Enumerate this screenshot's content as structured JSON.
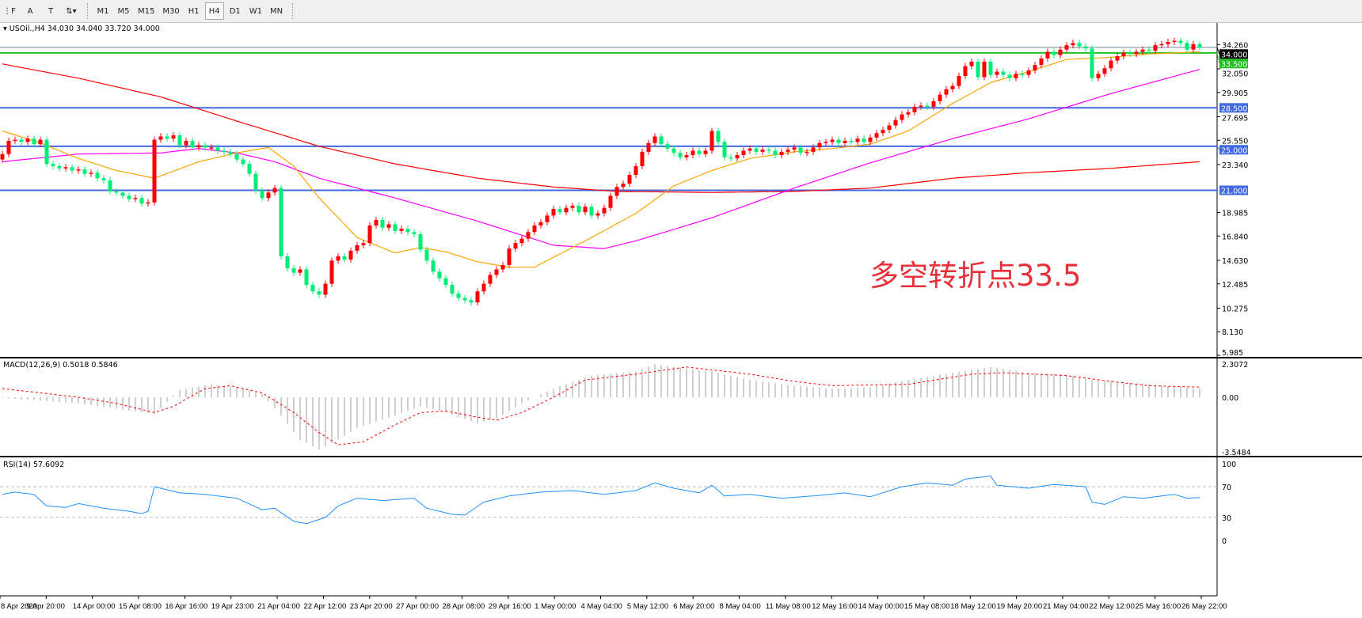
{
  "toolbar": {
    "tools": [
      {
        "name": "fibo-tool-icon",
        "glyph": "⋮F"
      },
      {
        "name": "text-tool-icon",
        "glyph": "A"
      },
      {
        "name": "text-label-tool-icon",
        "glyph": "T"
      },
      {
        "name": "arrows-tool-icon",
        "glyph": "⇅▾"
      }
    ],
    "timeframes": [
      "M1",
      "M5",
      "M15",
      "M30",
      "H1",
      "H4",
      "D1",
      "W1",
      "MN"
    ],
    "active_timeframe": "H4"
  },
  "chart_data": {
    "type": "candlestick",
    "symbol_header": "USOil.,H4  34.030 34.040 33.720 34.000",
    "colors": {
      "up": "#ff0000",
      "down": "#00ee76",
      "ma_fast": "#ffa500",
      "ma_mid": "#ff00ff",
      "ma_slow": "#ff0000",
      "level": "#4169e1",
      "pivot": "#22c022",
      "price_line": "#778899",
      "macd_hist": "#c0c0c0",
      "macd_signal": "#ff0000",
      "rsi": "#1e90ff"
    },
    "ylim": [
      5.985,
      34.26
    ],
    "closes": [
      24.3,
      25.5,
      25.6,
      25.4,
      25.7,
      25.2,
      25.6,
      23.4,
      23.2,
      23.0,
      23.1,
      22.8,
      22.9,
      22.5,
      22.6,
      22.1,
      21.9,
      20.9,
      20.8,
      20.5,
      20.2,
      20.3,
      19.8,
      19.9,
      25.6,
      25.9,
      25.7,
      26.0,
      25.1,
      25.5,
      24.9,
      25.1,
      24.9,
      24.9,
      24.6,
      24.5,
      24.3,
      23.8,
      23.4,
      22.5,
      21.0,
      20.3,
      20.8,
      21.2,
      15.0,
      13.9,
      13.5,
      13.8,
      12.4,
      11.8,
      11.5,
      12.5,
      14.6,
      15.0,
      14.7,
      15.5,
      16.0,
      16.2,
      17.8,
      18.3,
      17.6,
      17.9,
      17.3,
      17.5,
      17.2,
      17.0,
      15.6,
      14.6,
      13.6,
      13.0,
      12.4,
      11.6,
      11.2,
      11.0,
      10.8,
      11.8,
      12.5,
      13.3,
      13.8,
      14.2,
      15.7,
      16.2,
      16.6,
      17.2,
      17.8,
      18.1,
      18.7,
      19.3,
      19.0,
      19.4,
      19.6,
      19.0,
      19.5,
      18.7,
      18.9,
      19.4,
      20.5,
      21.3,
      21.6,
      22.4,
      23.2,
      24.5,
      25.3,
      25.9,
      25.2,
      24.8,
      24.4,
      24.0,
      24.2,
      24.6,
      24.3,
      24.6,
      26.4,
      25.4,
      24.0,
      23.9,
      24.2,
      24.6,
      24.8,
      24.5,
      24.7,
      24.6,
      24.2,
      24.5,
      24.7,
      24.9,
      24.4,
      24.5,
      24.9,
      25.3,
      25.4,
      25.6,
      25.3,
      25.5,
      25.4,
      25.7,
      25.4,
      25.8,
      26.2,
      26.5,
      26.9,
      27.4,
      27.9,
      28.1,
      28.6,
      28.7,
      28.6,
      29.1,
      29.7,
      30.2,
      30.5,
      31.4,
      32.3,
      32.7,
      31.3,
      32.7,
      31.5,
      31.8,
      31.5,
      31.2,
      31.6,
      31.5,
      31.9,
      32.4,
      33.0,
      33.6,
      33.3,
      33.8,
      34.2,
      34.4,
      34.1,
      33.9,
      31.2,
      31.6,
      32.1,
      32.8,
      33.2,
      33.5,
      33.4,
      33.6,
      33.8,
      33.7,
      34.2,
      34.3,
      34.5,
      34.6,
      34.4,
      33.8,
      34.3,
      34.0
    ],
    "moving_averages": {
      "fast": [
        [
          0,
          26.4
        ],
        [
          6,
          25.3
        ],
        [
          12,
          23.9
        ],
        [
          18,
          22.8
        ],
        [
          24,
          22.1
        ],
        [
          31,
          23.6
        ],
        [
          37,
          24.4
        ],
        [
          42,
          24.9
        ],
        [
          46,
          23.2
        ],
        [
          50,
          20.3
        ],
        [
          56,
          16.7
        ],
        [
          62,
          15.3
        ],
        [
          66,
          15.8
        ],
        [
          70,
          15.4
        ],
        [
          75,
          14.5
        ],
        [
          80,
          14.0
        ],
        [
          84,
          14.0
        ],
        [
          87,
          14.9
        ],
        [
          93,
          16.7
        ],
        [
          100,
          18.9
        ],
        [
          106,
          21.4
        ],
        [
          112,
          22.8
        ],
        [
          118,
          23.9
        ],
        [
          125,
          24.5
        ],
        [
          131,
          24.8
        ],
        [
          137,
          25.2
        ],
        [
          143,
          26.4
        ],
        [
          150,
          28.9
        ],
        [
          156,
          30.8
        ],
        [
          162,
          31.8
        ],
        [
          168,
          32.9
        ],
        [
          175,
          33.1
        ],
        [
          181,
          33.4
        ],
        [
          189,
          33.6
        ]
      ],
      "mid": [
        [
          0,
          23.6
        ],
        [
          12,
          24.3
        ],
        [
          25,
          24.4
        ],
        [
          31,
          24.8
        ],
        [
          37,
          24.4
        ],
        [
          43,
          23.6
        ],
        [
          50,
          22.1
        ],
        [
          62,
          20.3
        ],
        [
          75,
          18.2
        ],
        [
          87,
          16.0
        ],
        [
          95,
          15.7
        ],
        [
          100,
          16.4
        ],
        [
          112,
          18.5
        ],
        [
          125,
          21.2
        ],
        [
          137,
          23.5
        ],
        [
          150,
          25.7
        ],
        [
          162,
          27.5
        ],
        [
          175,
          29.8
        ],
        [
          189,
          32.0
        ]
      ],
      "slow": [
        [
          0,
          32.5
        ],
        [
          12,
          31.2
        ],
        [
          25,
          29.5
        ],
        [
          37,
          27.3
        ],
        [
          50,
          25.0
        ],
        [
          62,
          23.4
        ],
        [
          75,
          22.1
        ],
        [
          87,
          21.3
        ],
        [
          97,
          20.9
        ],
        [
          112,
          20.8
        ],
        [
          125,
          20.9
        ],
        [
          137,
          21.2
        ],
        [
          150,
          22.1
        ],
        [
          162,
          22.6
        ],
        [
          175,
          23.0
        ],
        [
          189,
          23.6
        ]
      ]
    },
    "levels": [
      {
        "value": 33.5,
        "label": "33.500",
        "kind": "pivot"
      },
      {
        "value": 28.5,
        "label": "28.500",
        "kind": "level"
      },
      {
        "value": 25.0,
        "label": "25.000",
        "kind": "level"
      },
      {
        "value": 21.0,
        "label": "21.000",
        "kind": "level"
      }
    ],
    "current_price": {
      "value": 34.0,
      "label": "34.000"
    },
    "price_ticks": [
      "34.260",
      "32.050",
      "29.905",
      "27.695",
      "25.550",
      "23.340",
      "18.985",
      "16.840",
      "14.630",
      "12.485",
      "10.275",
      "8.130",
      "5.985"
    ],
    "annotation": "多空转折点33.5",
    "macd": {
      "label": "MACD(12,26,9) 0.5018 0.5846",
      "ylim": [
        -3.5484,
        2.3072
      ],
      "ticks": [
        "2.3072",
        "0.00",
        "-3.5484"
      ],
      "histogram": [
        [
          0,
          -0.05
        ],
        [
          12,
          -0.4
        ],
        [
          24,
          -1.1
        ],
        [
          25,
          -0.7
        ],
        [
          28,
          0.5
        ],
        [
          33,
          0.9
        ],
        [
          37,
          0.7
        ],
        [
          41,
          0.2
        ],
        [
          44,
          -1.2
        ],
        [
          47,
          -2.8
        ],
        [
          50,
          -3.4
        ],
        [
          52,
          -3.0
        ],
        [
          56,
          -2.0
        ],
        [
          62,
          -1.2
        ],
        [
          66,
          -0.6
        ],
        [
          70,
          -1.0
        ],
        [
          75,
          -1.7
        ],
        [
          78,
          -1.4
        ],
        [
          82,
          -0.4
        ],
        [
          87,
          0.6
        ],
        [
          93,
          1.5
        ],
        [
          100,
          1.8
        ],
        [
          103,
          2.3
        ],
        [
          108,
          2.0
        ],
        [
          112,
          1.8
        ],
        [
          118,
          1.2
        ],
        [
          125,
          0.8
        ],
        [
          131,
          0.6
        ],
        [
          137,
          0.7
        ],
        [
          143,
          1.2
        ],
        [
          150,
          1.7
        ],
        [
          156,
          2.1
        ],
        [
          162,
          1.7
        ],
        [
          168,
          1.6
        ],
        [
          172,
          1.2
        ],
        [
          175,
          1.1
        ],
        [
          181,
          0.9
        ],
        [
          189,
          0.6
        ]
      ],
      "signal": [
        [
          0,
          0.6
        ],
        [
          6,
          0.3
        ],
        [
          12,
          0.0
        ],
        [
          18,
          -0.4
        ],
        [
          24,
          -1.0
        ],
        [
          27,
          -0.6
        ],
        [
          32,
          0.6
        ],
        [
          36,
          0.8
        ],
        [
          41,
          0.3
        ],
        [
          46,
          -1.0
        ],
        [
          50,
          -2.3
        ],
        [
          53,
          -3.1
        ],
        [
          57,
          -2.9
        ],
        [
          62,
          -1.8
        ],
        [
          66,
          -1.0
        ],
        [
          70,
          -0.9
        ],
        [
          75,
          -1.3
        ],
        [
          78,
          -1.5
        ],
        [
          82,
          -1.0
        ],
        [
          87,
          0.0
        ],
        [
          92,
          1.2
        ],
        [
          100,
          1.6
        ],
        [
          108,
          2.1
        ],
        [
          118,
          1.6
        ],
        [
          125,
          1.1
        ],
        [
          131,
          0.8
        ],
        [
          143,
          0.9
        ],
        [
          153,
          1.6
        ],
        [
          158,
          1.7
        ],
        [
          168,
          1.5
        ],
        [
          175,
          1.1
        ],
        [
          181,
          0.8
        ],
        [
          189,
          0.7
        ]
      ]
    },
    "rsi": {
      "label": "RSI(14) 57.6092",
      "ylim": [
        0,
        100
      ],
      "ticks": [
        "100",
        "70",
        "30",
        "0"
      ],
      "levels": [
        70,
        30
      ],
      "values": [
        [
          0,
          60
        ],
        [
          2,
          63
        ],
        [
          5,
          60
        ],
        [
          7,
          45
        ],
        [
          10,
          43
        ],
        [
          12,
          48
        ],
        [
          16,
          42
        ],
        [
          20,
          38
        ],
        [
          22,
          35
        ],
        [
          23,
          38
        ],
        [
          24,
          70
        ],
        [
          28,
          62
        ],
        [
          32,
          60
        ],
        [
          37,
          55
        ],
        [
          41,
          40
        ],
        [
          43,
          42
        ],
        [
          46,
          25
        ],
        [
          48,
          22
        ],
        [
          51,
          30
        ],
        [
          53,
          45
        ],
        [
          56,
          55
        ],
        [
          60,
          52
        ],
        [
          65,
          55
        ],
        [
          67,
          42
        ],
        [
          71,
          34
        ],
        [
          73,
          33
        ],
        [
          76,
          50
        ],
        [
          80,
          58
        ],
        [
          85,
          63
        ],
        [
          90,
          65
        ],
        [
          95,
          60
        ],
        [
          100,
          65
        ],
        [
          103,
          75
        ],
        [
          106,
          68
        ],
        [
          110,
          62
        ],
        [
          112,
          72
        ],
        [
          114,
          58
        ],
        [
          118,
          60
        ],
        [
          123,
          55
        ],
        [
          128,
          58
        ],
        [
          133,
          62
        ],
        [
          137,
          57
        ],
        [
          142,
          70
        ],
        [
          146,
          75
        ],
        [
          150,
          72
        ],
        [
          152,
          80
        ],
        [
          156,
          84
        ],
        [
          157,
          72
        ],
        [
          162,
          68
        ],
        [
          166,
          73
        ],
        [
          171,
          70
        ],
        [
          172,
          50
        ],
        [
          174,
          47
        ],
        [
          177,
          57
        ],
        [
          180,
          55
        ],
        [
          185,
          60
        ],
        [
          187,
          55
        ],
        [
          189,
          56
        ]
      ]
    },
    "time_labels": [
      "8 Apr 2020",
      "9 Apr 20:00",
      "14 Apr 00:00",
      "15 Apr 08:00",
      "16 Apr 16:00",
      "19 Apr 23:00",
      "21 Apr 04:00",
      "22 Apr 12:00",
      "23 Apr 20:00",
      "27 Apr 00:00",
      "28 Apr 08:00",
      "29 Apr 16:00",
      "1 May 00:00",
      "4 May 04:00",
      "5 May 12:00",
      "6 May 20:00",
      "8 May 04:00",
      "11 May 08:00",
      "12 May 16:00",
      "14 May 00:00",
      "15 May 08:00",
      "18 May 12:00",
      "19 May 20:00",
      "21 May 04:00",
      "22 May 12:00",
      "25 May 16:00",
      "26 May 22:00"
    ]
  }
}
